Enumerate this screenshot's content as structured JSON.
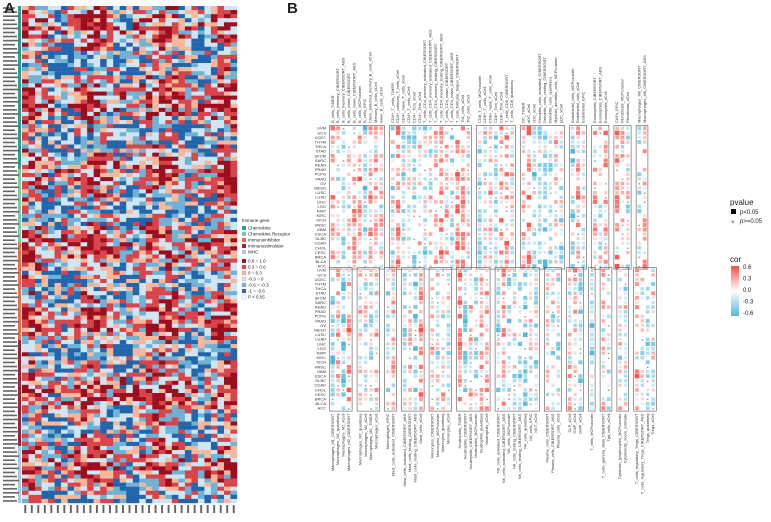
{
  "panel_a": {
    "letter": "A",
    "legend_title": "Immune gene",
    "legend_items": [
      {
        "label": "Chemokine",
        "color": "#2a9d8f"
      },
      {
        "label": "Chemokine Receptor",
        "color": "#7ec8a4"
      },
      {
        "label": "Immunoinhibitor",
        "color": "#e76f51"
      },
      {
        "label": "Immunostimulator",
        "color": "#9b2335"
      },
      {
        "label": "MHC",
        "color": "#a8c8e8"
      }
    ],
    "scale_bins": [
      "0.6 ~ 1.0",
      "0.3 ~ 0.6",
      "0 ~ 0.3",
      "-0.3 ~ 0",
      "-0.6 ~ -0.3",
      "-1 ~ -0.6",
      "P < 0.05"
    ],
    "scale_colors": [
      "#9b0e1e",
      "#d9444a",
      "#f7b79a",
      "#cfe6f2",
      "#6fb2d6",
      "#2166ac",
      "#ffffff"
    ]
  },
  "panel_b": {
    "letter": "B",
    "cancers": [
      "UVM",
      "UCS",
      "UCEC",
      "THYM",
      "THCA",
      "STAD",
      "SKCM",
      "SARC",
      "READ",
      "PRAD",
      "PCPG",
      "PAAD",
      "OV",
      "MESO",
      "LUSC",
      "LUAD",
      "LIHC",
      "LGG",
      "KIRP",
      "KIRC",
      "KICH",
      "HNSC",
      "GBM",
      "ESCA",
      "DLBC",
      "COAD",
      "CHOL",
      "CESC",
      "BRCA",
      "BLCA",
      "ACC"
    ],
    "top_groups": [
      [
        "B_cells_TIMER",
        "B_cells_memory_CIBERSORT",
        "B_cells_memory_CIBERSORT_ABS",
        "B_cells_naive_CIBERSORT",
        "B_cells_naive_CIBERSORT_ABS",
        "B_cells_MCPcounter",
        "B_cells_EPIC",
        "Class_switched_memory_B_cells_xCell",
        "Memory_B_cells_xCell",
        "naive_B_cells_xCell"
      ],
      [
        "CD4+_T_cells_TIMER",
        "CD4+_memory_T_cells_xCell",
        "CD4+_naive_T_cells_xCell",
        "CD4+_T_cells_xCell",
        "CD4+_Tcm_xCell",
        "CD4+_Tem_xCell",
        "T_cells_CD4_memory_activated_CIBERSORT",
        "T_cells_CD4_memory_activated_CIBERSORT_ABS",
        "T_cells_CD4_memory_resting_CIBERSORT",
        "T_cells_CD4_memory_resting_CIBERSORT_ABS",
        "T_cells_CD4_naive_CIBERSORT",
        "T_cells_CD4_naive_CIBERSORT_ABS",
        "T_cells_follicular_helper_CIBERSORT",
        "Th1_cells_xCell",
        "Th2_cells_xCell"
      ],
      [
        "CD8_T_cells_MCPcounter",
        "CD8+_T_cells_xCell",
        "CD8+_naive_T_cells_xCell",
        "CD8+_Tcm_xCell",
        "CD8+_Tem_xCell",
        "T_cells_CD8_CIBERSORT",
        "T_cells_CD8_quantiseq"
      ],
      [
        "DC_TIMER",
        "aDC_xCell",
        "cDC_xCell",
        "Dendritic_cells_activated_CIBERSORT",
        "Dendritic_cells_resting_CIBERSORT",
        "Dendritic_cells_quantiseq",
        "Myeloid_dendritic_cells_MCPcounter",
        "pDC_xCell"
      ],
      [
        "Endothelial_cells_MCPcounter",
        "Endothelial_cells_xCell",
        "Endothelial_EPIC"
      ],
      [
        "Eosinophils_CIBERSORT",
        "Eosinophils_CIBERSORT_ABS",
        "Eosinophils_xCell"
      ],
      [
        "CAFs_EPIC",
        "Fibroblasts_MCPcounter",
        "Fibroblasts_xCell"
      ],
      [
        "Macrophages_M0_CIBERSORT",
        "Macrophages_M0_CIBERSORT_ABS"
      ]
    ],
    "bottom_groups": [
      [
        "Macrophages_M1_CIBERSORT",
        "Macrophages_M1_quantiseq",
        "Macrophages_M1_xCell",
        "Macrophages_M2_CIBERSORT"
      ],
      [
        "Macrophages_M2_quantiseq",
        "Macrophages_M2_xCell",
        "Macrophages_M2_TIMER",
        "Macrophages_xCell"
      ],
      [
        "Macrophages_EPIC",
        "Mast_cells_activated_CIBERSORT"
      ],
      [
        "Mast_cells_activated_CIBERSORT_ABS",
        "Mast_cells_resting_CIBERSORT",
        "Mast_cells_resting_CIBERSORT_ABS",
        "Mast_cells_xCell"
      ],
      [
        "Monocytes_CIBERSORT",
        "Monocytes_MCPcounter",
        "Monocytes_quantiseq",
        "Monocytes_xCell"
      ],
      [
        "Neutrophils_TIMER",
        "Neutrophils_CIBERSORT",
        "Neutrophils_CIBERSORT_ABS",
        "Neutrophils_MCPcounter",
        "Neutrophils_quantiseq",
        "Neutrophils_xCell"
      ],
      [
        "NK_cells_activated_CIBERSORT",
        "NK_cells_activated_CIBERSORT_ABS",
        "NK_cells_MCPcounter",
        "NK_cells_resting_CIBERSORT",
        "NK_cells_resting_CIBERSORT_ABS",
        "NK_cells_quantiseq",
        "NK_cells_EPIC",
        "NKT_xCell"
      ],
      [
        "Plasma_cells_CIBERSORT",
        "Plasma_cells_CIBERSORT_ABS",
        "Plasma_cells_xCell"
      ],
      [
        "CLP_xCell",
        "CMP_xCell",
        "GMP_xCell"
      ],
      [
        "T_cells_MCPcounter"
      ],
      [
        "T_cells_gamma_delta_CIBERSORT",
        "Tgd_cells_xCell"
      ],
      [
        "Cytotoxic_lymphocytes_MCPcounter",
        "Cytotoxicity_score_estimate"
      ],
      [
        "T_cells_regulatory_Tregs_CIBERSORT",
        "T_cells_regulatory_Tregs_CIBERSORT_ABS",
        "Tregs_quantiseq",
        "Tregs_xCell"
      ]
    ],
    "pvalue_legend": {
      "title": "pvalue",
      "items": [
        "p<0.05",
        "p>=0.05"
      ]
    },
    "cor_legend": {
      "title": "cor",
      "ticks": [
        "0.6",
        "0.3",
        "0.0",
        "-0.3",
        "-0.6"
      ]
    }
  }
}
